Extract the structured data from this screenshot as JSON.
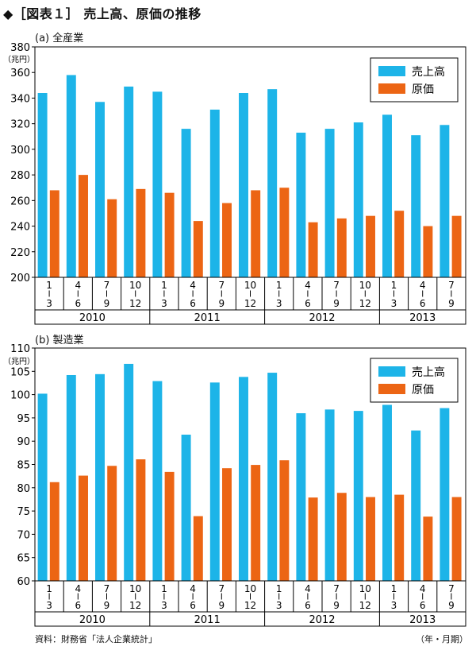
{
  "title": "◆［図表１］ 売上高、原価の推移",
  "source": "資料：財務省「法人企業統計」",
  "unit_note": "（年・月期）",
  "colors": {
    "sales": "#1db4e8",
    "cost": "#ec6514"
  },
  "chart_data": [
    {
      "type": "bar",
      "subtitle": "(a) 全産業",
      "yunit": "（兆円）",
      "ylim": [
        200,
        380
      ],
      "yticks": [
        200,
        220,
        240,
        260,
        280,
        300,
        320,
        340,
        360,
        380
      ],
      "categories": [
        "1-3",
        "4-6",
        "7-9",
        "10-12",
        "1-3",
        "4-6",
        "7-9",
        "10-12",
        "1-3",
        "4-6",
        "7-9",
        "10-12",
        "1-3",
        "4-6",
        "7-9"
      ],
      "quarter_top": [
        "1",
        "4",
        "7",
        "10",
        "1",
        "4",
        "7",
        "10",
        "1",
        "4",
        "7",
        "10",
        "1",
        "4",
        "7"
      ],
      "quarter_bottom": [
        "3",
        "6",
        "9",
        "12",
        "3",
        "6",
        "9",
        "12",
        "3",
        "6",
        "9",
        "12",
        "3",
        "6",
        "9"
      ],
      "years": [
        {
          "label": "2010",
          "count": 4
        },
        {
          "label": "2011",
          "count": 4
        },
        {
          "label": "2012",
          "count": 4
        },
        {
          "label": "2013",
          "count": 3
        }
      ],
      "legend_position": "top-right",
      "series": [
        {
          "name": "売上高",
          "values": [
            344,
            358,
            337,
            349,
            345,
            316,
            331,
            344,
            347,
            313,
            316,
            321,
            327,
            311,
            319
          ]
        },
        {
          "name": "原価",
          "values": [
            268,
            280,
            261,
            269,
            266,
            244,
            258,
            268,
            270,
            243,
            246,
            248,
            252,
            240,
            248
          ]
        }
      ]
    },
    {
      "type": "bar",
      "subtitle": "(b) 製造業",
      "yunit": "（兆円）",
      "ylim": [
        60,
        110
      ],
      "yticks": [
        60,
        65,
        70,
        75,
        80,
        85,
        90,
        95,
        100,
        105,
        110
      ],
      "categories": [
        "1-3",
        "4-6",
        "7-9",
        "10-12",
        "1-3",
        "4-6",
        "7-9",
        "10-12",
        "1-3",
        "4-6",
        "7-9",
        "10-12",
        "1-3",
        "4-6",
        "7-9"
      ],
      "quarter_top": [
        "1",
        "4",
        "7",
        "10",
        "1",
        "4",
        "7",
        "10",
        "1",
        "4",
        "7",
        "10",
        "1",
        "4",
        "7"
      ],
      "quarter_bottom": [
        "3",
        "6",
        "9",
        "12",
        "3",
        "6",
        "9",
        "12",
        "3",
        "6",
        "9",
        "12",
        "3",
        "6",
        "9"
      ],
      "years": [
        {
          "label": "2010",
          "count": 4
        },
        {
          "label": "2011",
          "count": 4
        },
        {
          "label": "2012",
          "count": 4
        },
        {
          "label": "2013",
          "count": 3
        }
      ],
      "legend_position": "top-right",
      "series": [
        {
          "name": "売上高",
          "values": [
            100.2,
            104.2,
            104.4,
            106.6,
            102.9,
            91.4,
            102.6,
            103.8,
            104.7,
            96.0,
            96.8,
            96.5,
            97.8,
            92.3,
            97.1
          ]
        },
        {
          "name": "原価",
          "values": [
            81.2,
            82.6,
            84.7,
            86.1,
            83.4,
            73.9,
            84.2,
            84.9,
            85.9,
            77.9,
            78.9,
            78.0,
            78.5,
            73.8,
            78.0
          ]
        }
      ]
    }
  ]
}
